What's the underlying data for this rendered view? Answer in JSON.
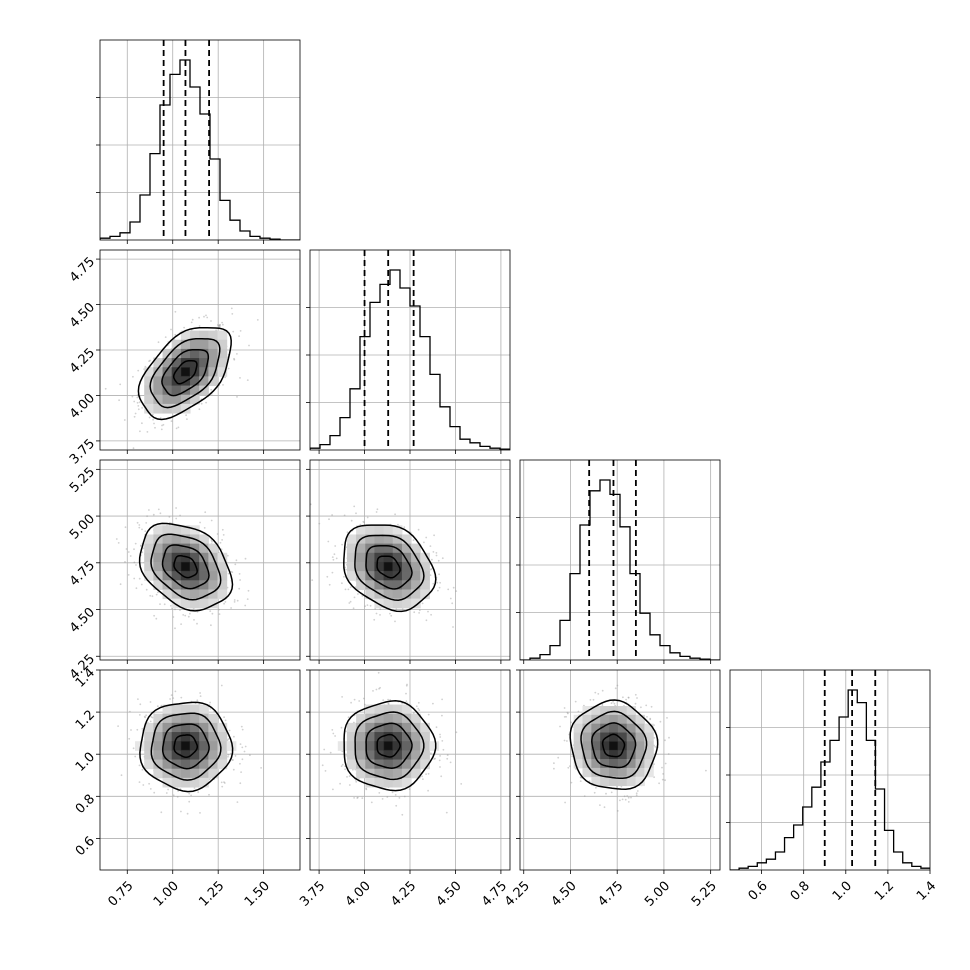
{
  "chart_data": {
    "type": "corner",
    "params": [
      {
        "range": [
          0.6,
          1.7
        ],
        "ticks": [
          "0.75",
          "1.00",
          "1.25",
          "1.50"
        ],
        "tick_values": [
          0.75,
          1.0,
          1.25,
          1.5
        ],
        "center": 1.07,
        "sigma": 0.12,
        "quantiles": [
          0.95,
          1.07,
          1.2
        ]
      },
      {
        "range": [
          3.7,
          4.8
        ],
        "ticks": [
          "3.75",
          "4.00",
          "4.25",
          "4.50",
          "4.75"
        ],
        "tick_values": [
          3.75,
          4.0,
          4.25,
          4.5,
          4.75
        ],
        "center": 4.13,
        "sigma": 0.12,
        "quantiles": [
          4.0,
          4.13,
          4.27
        ]
      },
      {
        "range": [
          4.23,
          5.3
        ],
        "ticks": [
          "4.25",
          "4.50",
          "4.75",
          "5.00",
          "5.25"
        ],
        "tick_values": [
          4.25,
          4.5,
          4.75,
          5.0,
          5.25
        ],
        "center": 4.73,
        "sigma": 0.11,
        "quantiles": [
          4.6,
          4.73,
          4.85
        ]
      },
      {
        "range": [
          0.45,
          1.4
        ],
        "ticks": [
          "0.6",
          "0.8",
          "1.0",
          "1.2",
          "1.4"
        ],
        "tick_values": [
          0.6,
          0.8,
          1.0,
          1.2,
          1.4
        ],
        "center": 1.04,
        "sigma": 0.1,
        "quantiles": [
          0.9,
          1.03,
          1.14
        ]
      }
    ],
    "histograms": [
      [
        1,
        2,
        4,
        10,
        25,
        48,
        75,
        92,
        100,
        85,
        70,
        45,
        22,
        11,
        5,
        2,
        1,
        0.5,
        0,
        0
      ],
      [
        1,
        3,
        8,
        18,
        34,
        63,
        82,
        92,
        100,
        90,
        80,
        63,
        42,
        24,
        13,
        6,
        4,
        2,
        1,
        0.5
      ],
      [
        0,
        1,
        3,
        8,
        22,
        48,
        75,
        94,
        100,
        92,
        74,
        48,
        26,
        14,
        8,
        4,
        2,
        1,
        0.5,
        0
      ],
      [
        0,
        1,
        2,
        4,
        6,
        10,
        18,
        25,
        35,
        46,
        60,
        72,
        85,
        100,
        93,
        72,
        45,
        22,
        10,
        4,
        2,
        1
      ]
    ],
    "correlations": {
      "1-0": 0.5,
      "2-0": -0.3,
      "2-1": -0.25,
      "3-0": 0.0,
      "3-1": 0.0,
      "3-2": -0.05
    },
    "contour_levels_sigma": [
      0.5,
      1.0,
      1.5,
      2.0
    ],
    "grid": true,
    "quantile_line_style": "dashed"
  }
}
